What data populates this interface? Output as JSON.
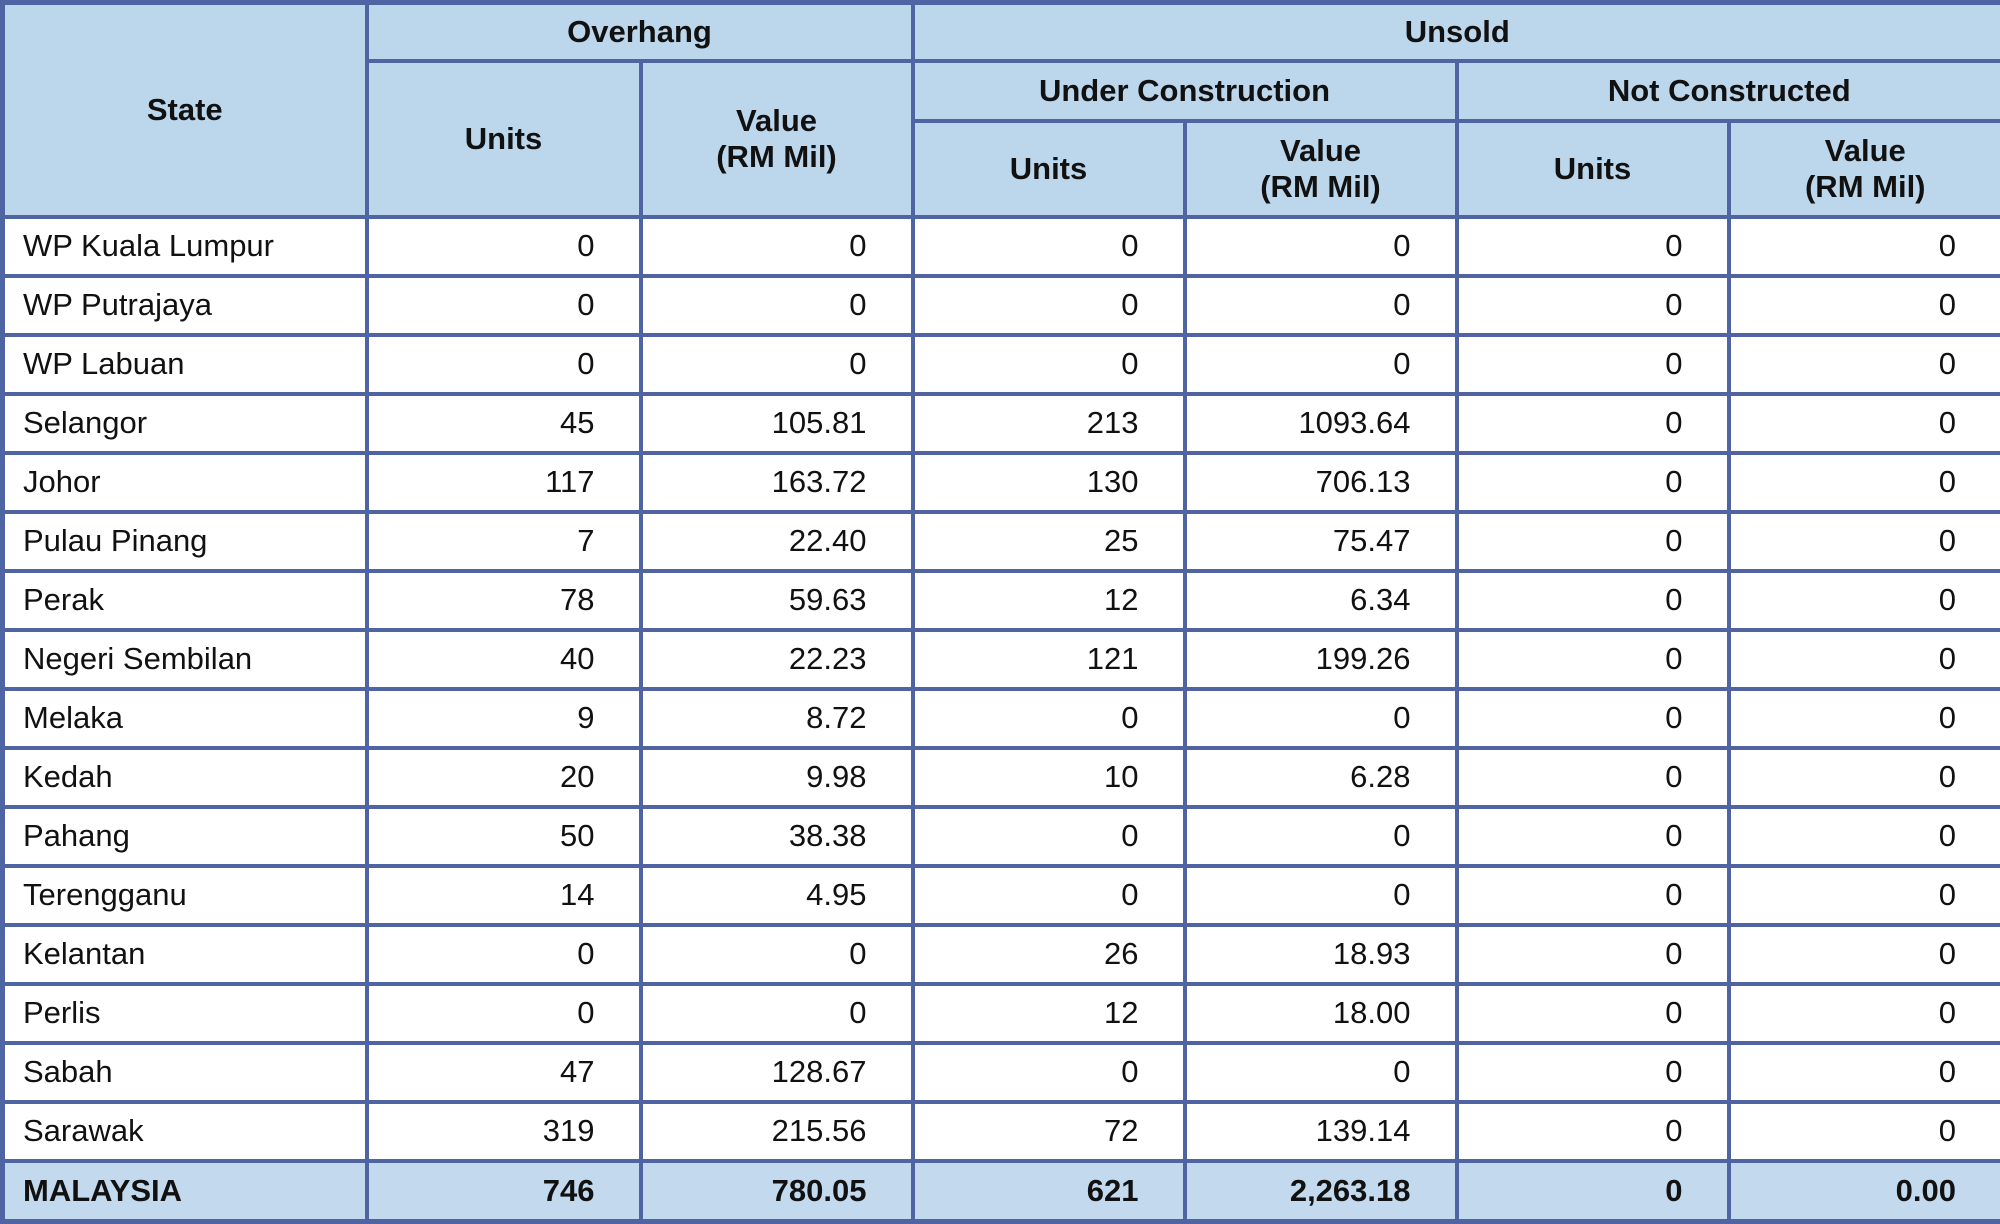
{
  "table": {
    "header": {
      "state": "State",
      "overhang": "Overhang",
      "unsold": "Unsold",
      "under_construction": "Under Construction",
      "not_constructed": "Not Constructed",
      "units": "Units",
      "value_rm_mil": "Value\n(RM Mil)"
    },
    "rows": [
      {
        "state": "WP Kuala Lumpur",
        "values": [
          "0",
          "0",
          "0",
          "0",
          "0",
          "0"
        ]
      },
      {
        "state": "WP Putrajaya",
        "values": [
          "0",
          "0",
          "0",
          "0",
          "0",
          "0"
        ]
      },
      {
        "state": "WP Labuan",
        "values": [
          "0",
          "0",
          "0",
          "0",
          "0",
          "0"
        ]
      },
      {
        "state": "Selangor",
        "values": [
          "45",
          "105.81",
          "213",
          "1093.64",
          "0",
          "0"
        ]
      },
      {
        "state": "Johor",
        "values": [
          "117",
          "163.72",
          "130",
          "706.13",
          "0",
          "0"
        ]
      },
      {
        "state": "Pulau Pinang",
        "values": [
          "7",
          "22.40",
          "25",
          "75.47",
          "0",
          "0"
        ]
      },
      {
        "state": "Perak",
        "values": [
          "78",
          "59.63",
          "12",
          "6.34",
          "0",
          "0"
        ]
      },
      {
        "state": "Negeri Sembilan",
        "values": [
          "40",
          "22.23",
          "121",
          "199.26",
          "0",
          "0"
        ]
      },
      {
        "state": "Melaka",
        "values": [
          "9",
          "8.72",
          "0",
          "0",
          "0",
          "0"
        ]
      },
      {
        "state": "Kedah",
        "values": [
          "20",
          "9.98",
          "10",
          "6.28",
          "0",
          "0"
        ]
      },
      {
        "state": "Pahang",
        "values": [
          "50",
          "38.38",
          "0",
          "0",
          "0",
          "0"
        ]
      },
      {
        "state": "Terengganu",
        "values": [
          "14",
          "4.95",
          "0",
          "0",
          "0",
          "0"
        ]
      },
      {
        "state": "Kelantan",
        "values": [
          "0",
          "0",
          "26",
          "18.93",
          "0",
          "0"
        ]
      },
      {
        "state": "Perlis",
        "values": [
          "0",
          "0",
          "12",
          "18.00",
          "0",
          "0"
        ]
      },
      {
        "state": "Sabah",
        "values": [
          "47",
          "128.67",
          "0",
          "0",
          "0",
          "0"
        ]
      },
      {
        "state": "Sarawak",
        "values": [
          "319",
          "215.56",
          "72",
          "139.14",
          "0",
          "0"
        ]
      }
    ],
    "total": {
      "state": "MALAYSIA",
      "values": [
        "746",
        "780.05",
        "621",
        "2,263.18",
        "0",
        "0.00"
      ]
    }
  },
  "colors": {
    "header_bg": "#bcd6ec",
    "row_bg": "#ffffff",
    "total_bg": "#c3d9ee",
    "border": "#4f64a2",
    "text": "#111111"
  }
}
